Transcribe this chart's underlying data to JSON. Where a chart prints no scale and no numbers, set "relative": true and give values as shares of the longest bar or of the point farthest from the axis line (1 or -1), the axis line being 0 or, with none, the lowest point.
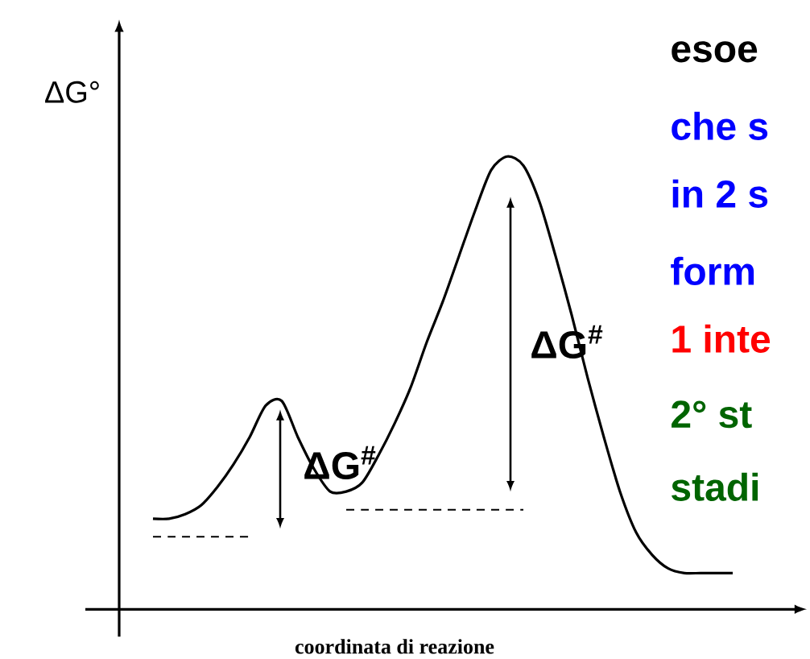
{
  "chart_data": {
    "type": "line",
    "relative": true,
    "xlabel": "coordinata di reazione",
    "ylabel": "ΔG°",
    "categories": [
      null,
      null,
      null,
      null,
      null,
      null,
      null,
      null,
      null,
      null,
      null,
      null,
      null,
      null,
      null,
      null,
      null,
      null,
      null,
      null,
      null,
      null,
      null,
      null,
      null,
      null,
      null,
      null,
      null,
      null,
      null,
      null,
      null,
      null,
      null,
      null,
      null
    ],
    "series": [
      {
        "color": "#000000",
        "values": [
          0.2,
          0.2,
          0.21,
          0.23,
          0.27,
          0.32,
          0.38,
          0.45,
          0.46,
          0.38,
          0.31,
          0.26,
          0.26,
          0.28,
          0.34,
          0.41,
          0.49,
          0.59,
          0.68,
          0.78,
          0.88,
          0.97,
          1,
          0.98,
          0.9,
          0.78,
          0.65,
          0.51,
          0.38,
          0.26,
          0.17,
          0.12,
          0.09,
          0.08,
          0.08,
          0.08,
          0.08
        ]
      },
      {
        "type": "line",
        "color": "#000000",
        "line_style": "dashed",
        "values": [
          0.16,
          0.16,
          0.16,
          0.16,
          0.16,
          0.16,
          0.16,
          null,
          null,
          null,
          null,
          null,
          null,
          null,
          null,
          null,
          null,
          null,
          null,
          null,
          null,
          null,
          null,
          null,
          null,
          null,
          null,
          null,
          null,
          null,
          null,
          null,
          null,
          null,
          null,
          null,
          null
        ]
      },
      {
        "type": "line",
        "color": "#000000",
        "line_style": "dashed",
        "values": [
          null,
          null,
          null,
          null,
          null,
          null,
          null,
          null,
          null,
          null,
          null,
          null,
          0.22,
          0.22,
          0.22,
          0.22,
          0.22,
          0.22,
          0.22,
          0.22,
          0.22,
          0.22,
          0.22,
          0.22,
          null,
          null,
          null,
          null,
          null,
          null,
          null,
          null,
          null,
          null,
          null,
          null,
          null
        ]
      }
    ],
    "marker": "none",
    "line_style": "solid",
    "annotations": [
      "ΔG$^{#}$",
      "ΔG$^{#}$",
      "esoe",
      "che s",
      "in 2 s",
      "form",
      "1 inte",
      "2° st",
      "stadi"
    ]
  }
}
